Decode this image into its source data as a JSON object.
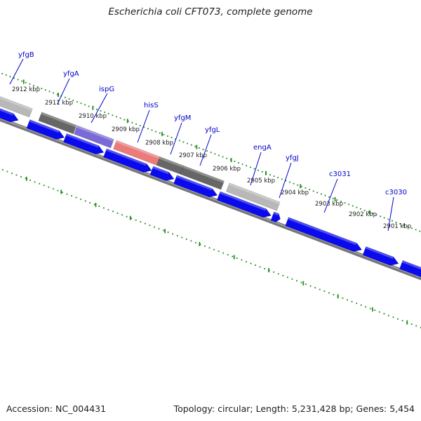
{
  "title": "Escherichia coli CFT073, complete genome",
  "footer": {
    "accession": "Accession: NC_004431",
    "summary": "Topology: circular; Length: 5,231,428 bp; Genes: 5,454"
  },
  "colors": {
    "backbone": "#888888",
    "tick_dots": "#1e8c1e",
    "gene_label": "#0000cc",
    "forward_gene": "#0a0aee",
    "light_gray_gene": "#b8b8b8",
    "dark_gray_gene": "#666666",
    "purple_gene": "#7a6ad8",
    "pink_gene": "#ec7a7a"
  },
  "kbp_labels": [
    "2912 kbp",
    "2911 kbp",
    "2910 kbp",
    "2909 kbp",
    "2908 kbp",
    "2907 kbp",
    "2906 kbp",
    "2905 kbp",
    "2904 kbp",
    "2903 kbp",
    "2902 kbp",
    "2901 kbp"
  ],
  "gene_labels": [
    "yfgB",
    "yfgA",
    "ispG",
    "hisS",
    "yfgM",
    "yfgL",
    "engA",
    "yfgJ",
    "c3031",
    "c3030"
  ]
}
